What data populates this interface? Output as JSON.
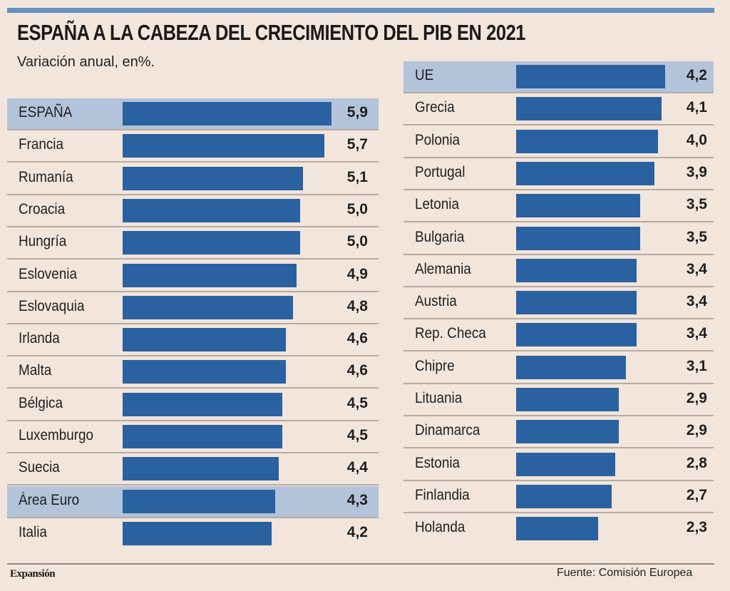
{
  "chart_data": {
    "type": "bar",
    "orientation": "horizontal",
    "title": "ESPAÑA A LA CABEZA DEL CRECIMIENTO DEL PIB EN 2021",
    "subtitle": "Variación anual, en%.",
    "xlabel": "",
    "ylabel": "",
    "xlim": [
      0,
      6
    ],
    "grid": false,
    "value_labels_shown": true,
    "decimal_separator": ",",
    "panels": [
      {
        "name": "left",
        "categories": [
          "ESPAÑA",
          "Francia",
          "Rumanía",
          "Croacia",
          "Hungría",
          "Eslovenia",
          "Eslovaquia",
          "Irlanda",
          "Malta",
          "Bélgica",
          "Luxemburgo",
          "Suecia",
          "Área Euro",
          "Italia"
        ],
        "values": [
          5.9,
          5.7,
          5.1,
          5.0,
          5.0,
          4.9,
          4.8,
          4.6,
          4.6,
          4.5,
          4.5,
          4.4,
          4.3,
          4.2
        ],
        "value_labels": [
          "5,9",
          "5,7",
          "5,1",
          "5,0",
          "5,0",
          "4,9",
          "4,8",
          "4,6",
          "4,6",
          "4,5",
          "4,5",
          "4,4",
          "4,3",
          "4,2"
        ],
        "highlighted": [
          "ESPAÑA",
          "Área Euro"
        ]
      },
      {
        "name": "right",
        "categories": [
          "UE",
          "Grecia",
          "Polonia",
          "Portugal",
          "Letonia",
          "Bulgaria",
          "Alemania",
          "Austria",
          "Rep. Checa",
          "Chipre",
          "Lituania",
          "Dinamarca",
          "Estonia",
          "Finlandia",
          "Holanda"
        ],
        "values": [
          4.2,
          4.1,
          4.0,
          3.9,
          3.5,
          3.5,
          3.4,
          3.4,
          3.4,
          3.1,
          2.9,
          2.9,
          2.8,
          2.7,
          2.3
        ],
        "value_labels": [
          "4,2",
          "4,1",
          "4,0",
          "3,9",
          "3,5",
          "3,5",
          "3,4",
          "3,4",
          "3,4",
          "3,1",
          "2,9",
          "2,9",
          "2,8",
          "2,7",
          "2,3"
        ],
        "highlighted": [
          "UE"
        ]
      }
    ],
    "colors": {
      "bar": "#2a61a0",
      "highlight_row": "#b3c3da",
      "background": "#f2e5db",
      "accent_rule": "#6590c0"
    }
  },
  "footer": {
    "brand": "Expansión",
    "source": "Fuente: Comisión Europea"
  }
}
